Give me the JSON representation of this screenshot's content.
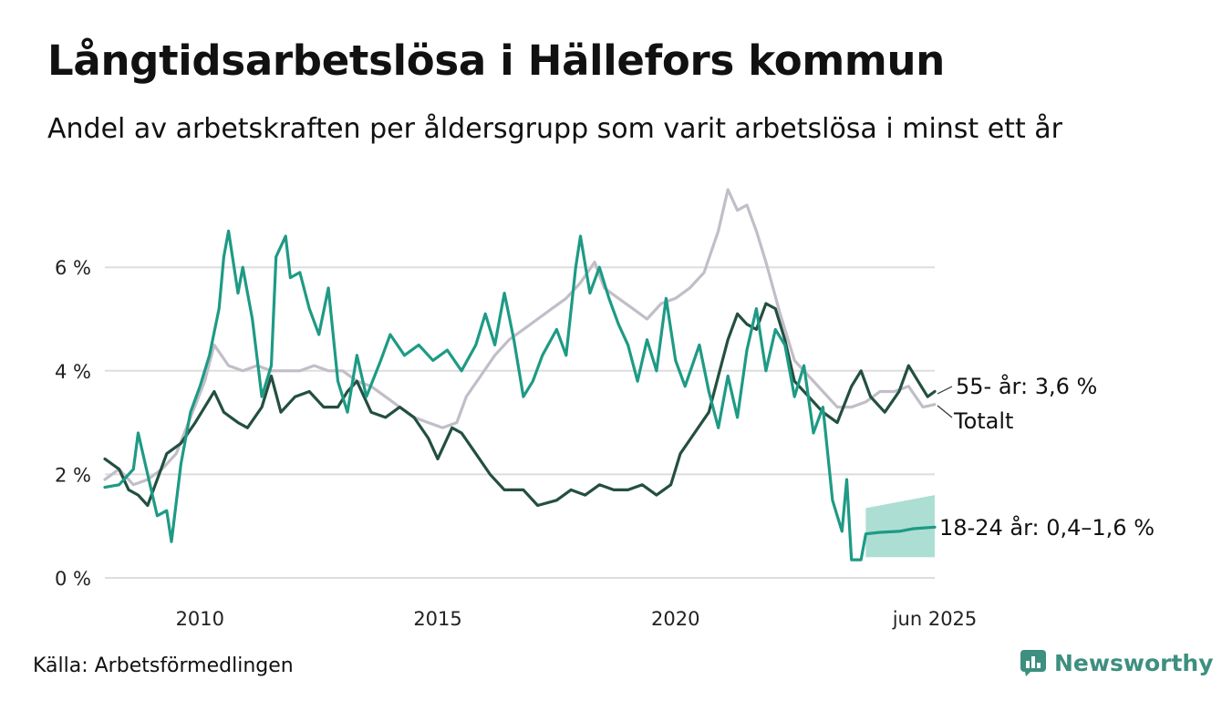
{
  "header": {
    "title": "Långtidsarbetslösa i Hällefors kommun",
    "subtitle": "Andel av arbetskraften per åldersgrupp som varit arbetslösa i minst ett år"
  },
  "footer": {
    "source": "Källa: Arbetsförmedlingen",
    "brand": "Newsworthy"
  },
  "colors": {
    "total": "#c1bec8",
    "age55": "#234f41",
    "age1824": "#1e9a85",
    "band": "#9fd8cc",
    "grid": "#dddddd",
    "brand": "#3d8f7f"
  },
  "chart_data": {
    "type": "line",
    "ylim": [
      0,
      7.5
    ],
    "xlim": [
      2008.0,
      2025.45
    ],
    "grid": "horizontal",
    "y_ticks": [
      {
        "value": 0,
        "label": "0 %"
      },
      {
        "value": 2,
        "label": "2 %"
      },
      {
        "value": 4,
        "label": "4 %"
      },
      {
        "value": 6,
        "label": "6 %"
      }
    ],
    "x_ticks": [
      {
        "value": 2010,
        "label": "2010"
      },
      {
        "value": 2015,
        "label": "2015"
      },
      {
        "value": 2020,
        "label": "2020"
      },
      {
        "value": 2025.45,
        "label": "jun 2025"
      }
    ],
    "series": [
      {
        "name": "Totalt",
        "color_key": "total",
        "end_label": "Totalt",
        "points": [
          [
            2008.0,
            1.9
          ],
          [
            2008.3,
            2.1
          ],
          [
            2008.6,
            1.8
          ],
          [
            2008.9,
            1.9
          ],
          [
            2009.2,
            2.1
          ],
          [
            2009.5,
            2.4
          ],
          [
            2009.8,
            3.1
          ],
          [
            2010.1,
            3.8
          ],
          [
            2010.3,
            4.5
          ],
          [
            2010.6,
            4.1
          ],
          [
            2010.9,
            4.0
          ],
          [
            2011.2,
            4.1
          ],
          [
            2011.5,
            4.0
          ],
          [
            2011.8,
            4.0
          ],
          [
            2012.1,
            4.0
          ],
          [
            2012.4,
            4.1
          ],
          [
            2012.7,
            4.0
          ],
          [
            2013.0,
            4.0
          ],
          [
            2013.3,
            3.8
          ],
          [
            2013.6,
            3.7
          ],
          [
            2013.9,
            3.5
          ],
          [
            2014.2,
            3.3
          ],
          [
            2014.5,
            3.1
          ],
          [
            2014.8,
            3.0
          ],
          [
            2015.1,
            2.9
          ],
          [
            2015.4,
            3.0
          ],
          [
            2015.6,
            3.5
          ],
          [
            2015.9,
            3.9
          ],
          [
            2016.2,
            4.3
          ],
          [
            2016.5,
            4.6
          ],
          [
            2016.8,
            4.8
          ],
          [
            2017.1,
            5.0
          ],
          [
            2017.4,
            5.2
          ],
          [
            2017.7,
            5.4
          ],
          [
            2018.0,
            5.7
          ],
          [
            2018.3,
            6.1
          ],
          [
            2018.5,
            5.6
          ],
          [
            2018.8,
            5.4
          ],
          [
            2019.1,
            5.2
          ],
          [
            2019.4,
            5.0
          ],
          [
            2019.7,
            5.3
          ],
          [
            2020.0,
            5.4
          ],
          [
            2020.3,
            5.6
          ],
          [
            2020.6,
            5.9
          ],
          [
            2020.9,
            6.7
          ],
          [
            2021.1,
            7.5
          ],
          [
            2021.3,
            7.1
          ],
          [
            2021.5,
            7.2
          ],
          [
            2021.7,
            6.7
          ],
          [
            2021.9,
            6.1
          ],
          [
            2022.2,
            5.1
          ],
          [
            2022.5,
            4.2
          ],
          [
            2022.8,
            3.9
          ],
          [
            2023.1,
            3.6
          ],
          [
            2023.4,
            3.3
          ],
          [
            2023.7,
            3.3
          ],
          [
            2024.0,
            3.4
          ],
          [
            2024.3,
            3.6
          ],
          [
            2024.6,
            3.6
          ],
          [
            2024.9,
            3.7
          ],
          [
            2025.2,
            3.3
          ],
          [
            2025.45,
            3.35
          ]
        ]
      },
      {
        "name": "55- år",
        "color_key": "age55",
        "end_label": "55- år: 3,6 %",
        "points": [
          [
            2008.0,
            2.3
          ],
          [
            2008.3,
            2.1
          ],
          [
            2008.5,
            1.7
          ],
          [
            2008.7,
            1.6
          ],
          [
            2008.9,
            1.4
          ],
          [
            2009.1,
            1.9
          ],
          [
            2009.3,
            2.4
          ],
          [
            2009.6,
            2.6
          ],
          [
            2009.9,
            3.0
          ],
          [
            2010.1,
            3.3
          ],
          [
            2010.3,
            3.6
          ],
          [
            2010.5,
            3.2
          ],
          [
            2010.8,
            3.0
          ],
          [
            2011.0,
            2.9
          ],
          [
            2011.3,
            3.3
          ],
          [
            2011.5,
            3.9
          ],
          [
            2011.7,
            3.2
          ],
          [
            2012.0,
            3.5
          ],
          [
            2012.3,
            3.6
          ],
          [
            2012.6,
            3.3
          ],
          [
            2012.9,
            3.3
          ],
          [
            2013.1,
            3.6
          ],
          [
            2013.3,
            3.8
          ],
          [
            2013.6,
            3.2
          ],
          [
            2013.9,
            3.1
          ],
          [
            2014.2,
            3.3
          ],
          [
            2014.5,
            3.1
          ],
          [
            2014.8,
            2.7
          ],
          [
            2015.0,
            2.3
          ],
          [
            2015.3,
            2.9
          ],
          [
            2015.5,
            2.8
          ],
          [
            2015.8,
            2.4
          ],
          [
            2016.1,
            2.0
          ],
          [
            2016.4,
            1.7
          ],
          [
            2016.8,
            1.7
          ],
          [
            2017.1,
            1.4
          ],
          [
            2017.5,
            1.5
          ],
          [
            2017.8,
            1.7
          ],
          [
            2018.1,
            1.6
          ],
          [
            2018.4,
            1.8
          ],
          [
            2018.7,
            1.7
          ],
          [
            2019.0,
            1.7
          ],
          [
            2019.3,
            1.8
          ],
          [
            2019.6,
            1.6
          ],
          [
            2019.9,
            1.8
          ],
          [
            2020.1,
            2.4
          ],
          [
            2020.4,
            2.8
          ],
          [
            2020.7,
            3.2
          ],
          [
            2020.9,
            3.9
          ],
          [
            2021.1,
            4.6
          ],
          [
            2021.3,
            5.1
          ],
          [
            2021.5,
            4.9
          ],
          [
            2021.7,
            4.8
          ],
          [
            2021.9,
            5.3
          ],
          [
            2022.1,
            5.2
          ],
          [
            2022.3,
            4.6
          ],
          [
            2022.5,
            3.8
          ],
          [
            2022.8,
            3.5
          ],
          [
            2023.1,
            3.2
          ],
          [
            2023.4,
            3.0
          ],
          [
            2023.7,
            3.7
          ],
          [
            2023.9,
            4.0
          ],
          [
            2024.1,
            3.5
          ],
          [
            2024.4,
            3.2
          ],
          [
            2024.7,
            3.6
          ],
          [
            2024.9,
            4.1
          ],
          [
            2025.1,
            3.8
          ],
          [
            2025.3,
            3.5
          ],
          [
            2025.45,
            3.6
          ]
        ]
      },
      {
        "name": "18-24 år",
        "color_key": "age1824",
        "end_label": "18-24 år: 0,4–1,6 %",
        "points": [
          [
            2008.0,
            1.75
          ],
          [
            2008.3,
            1.8
          ],
          [
            2008.6,
            2.1
          ],
          [
            2008.7,
            2.8
          ],
          [
            2008.9,
            2.0
          ],
          [
            2009.1,
            1.2
          ],
          [
            2009.3,
            1.3
          ],
          [
            2009.4,
            0.7
          ],
          [
            2009.6,
            2.2
          ],
          [
            2009.8,
            3.2
          ],
          [
            2010.0,
            3.7
          ],
          [
            2010.2,
            4.3
          ],
          [
            2010.4,
            5.2
          ],
          [
            2010.5,
            6.2
          ],
          [
            2010.6,
            6.7
          ],
          [
            2010.8,
            5.5
          ],
          [
            2010.9,
            6.0
          ],
          [
            2011.1,
            5.0
          ],
          [
            2011.3,
            3.5
          ],
          [
            2011.5,
            4.1
          ],
          [
            2011.6,
            6.2
          ],
          [
            2011.8,
            6.6
          ],
          [
            2011.9,
            5.8
          ],
          [
            2012.1,
            5.9
          ],
          [
            2012.3,
            5.2
          ],
          [
            2012.5,
            4.7
          ],
          [
            2012.7,
            5.6
          ],
          [
            2012.9,
            3.8
          ],
          [
            2013.1,
            3.2
          ],
          [
            2013.3,
            4.3
          ],
          [
            2013.5,
            3.5
          ],
          [
            2013.8,
            4.2
          ],
          [
            2014.0,
            4.7
          ],
          [
            2014.3,
            4.3
          ],
          [
            2014.6,
            4.5
          ],
          [
            2014.9,
            4.2
          ],
          [
            2015.2,
            4.4
          ],
          [
            2015.5,
            4.0
          ],
          [
            2015.8,
            4.5
          ],
          [
            2016.0,
            5.1
          ],
          [
            2016.2,
            4.5
          ],
          [
            2016.4,
            5.5
          ],
          [
            2016.6,
            4.6
          ],
          [
            2016.8,
            3.5
          ],
          [
            2017.0,
            3.8
          ],
          [
            2017.2,
            4.3
          ],
          [
            2017.5,
            4.8
          ],
          [
            2017.7,
            4.3
          ],
          [
            2017.9,
            6.0
          ],
          [
            2018.0,
            6.6
          ],
          [
            2018.2,
            5.5
          ],
          [
            2018.4,
            6.0
          ],
          [
            2018.6,
            5.4
          ],
          [
            2018.8,
            4.9
          ],
          [
            2019.0,
            4.5
          ],
          [
            2019.2,
            3.8
          ],
          [
            2019.4,
            4.6
          ],
          [
            2019.6,
            4.0
          ],
          [
            2019.8,
            5.4
          ],
          [
            2020.0,
            4.2
          ],
          [
            2020.2,
            3.7
          ],
          [
            2020.5,
            4.5
          ],
          [
            2020.7,
            3.6
          ],
          [
            2020.9,
            2.9
          ],
          [
            2021.1,
            3.9
          ],
          [
            2021.3,
            3.1
          ],
          [
            2021.5,
            4.4
          ],
          [
            2021.7,
            5.2
          ],
          [
            2021.9,
            4.0
          ],
          [
            2022.1,
            4.8
          ],
          [
            2022.3,
            4.5
          ],
          [
            2022.5,
            3.5
          ],
          [
            2022.7,
            4.1
          ],
          [
            2022.9,
            2.8
          ],
          [
            2023.1,
            3.3
          ],
          [
            2023.3,
            1.5
          ],
          [
            2023.5,
            0.9
          ],
          [
            2023.6,
            1.9
          ],
          [
            2023.7,
            0.35
          ],
          [
            2023.9,
            0.35
          ],
          [
            2024.0,
            0.85
          ],
          [
            2024.3,
            0.88
          ],
          [
            2024.7,
            0.9
          ],
          [
            2025.0,
            0.95
          ],
          [
            2025.45,
            0.98
          ]
        ],
        "band": {
          "x_start": 2024.0,
          "x_end": 2025.45,
          "low": [
            0.4,
            0.4
          ],
          "high": [
            1.35,
            1.6
          ]
        }
      }
    ]
  }
}
